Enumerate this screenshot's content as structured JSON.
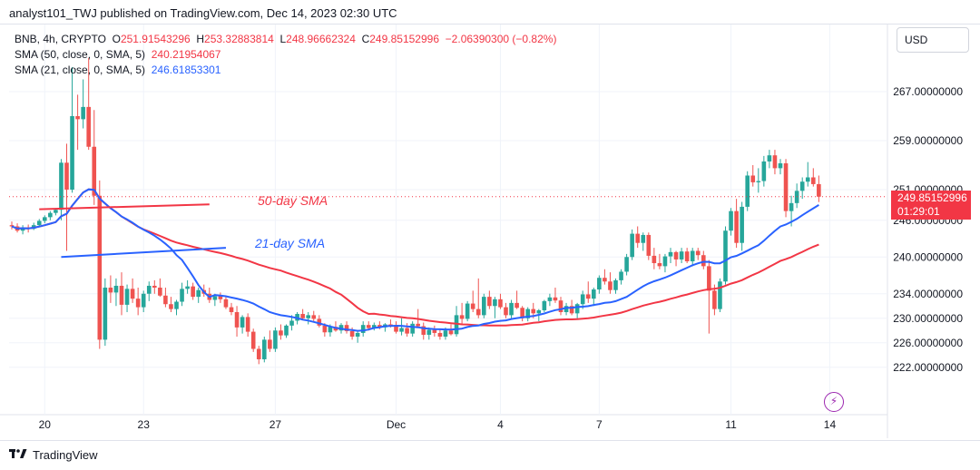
{
  "header": {
    "text": "analyst101_TWJ published on TradingView.com, Dec 14, 2023 02:30 UTC"
  },
  "footer": {
    "brand": "TradingView"
  },
  "legend": {
    "symbol": "BNB, 4h, CRYPTO",
    "ohlc": [
      {
        "label": "O",
        "value": "251.91543296"
      },
      {
        "label": "H",
        "value": "253.32883814"
      },
      {
        "label": "L",
        "value": "248.96662324"
      },
      {
        "label": "C",
        "value": "249.85152996"
      }
    ],
    "change": "−2.06390300 (−0.82%)",
    "sma50_label": "SMA (50, close, 0, SMA, 5)",
    "sma50_value": "240.21954067",
    "sma21_label": "SMA (21, close, 0, SMA, 5)",
    "sma21_value": "246.61853301"
  },
  "currency_button": "USD",
  "price_badge": {
    "price": "249.85152996",
    "countdown": "01:29:01"
  },
  "colors": {
    "up": "#26a69a",
    "down": "#ef5350",
    "sma50": "#f23645",
    "sma21": "#2962ff",
    "grid": "#f0f3fa",
    "annotation_red": "#f23645",
    "annotation_blue": "#2962ff",
    "flash_icon": "#9c27b0"
  },
  "chart_data": {
    "type": "candlestick",
    "title": "BNB, 4h, CRYPTO",
    "ylim": [
      218,
      275
    ],
    "price_ticks": [
      "267.00000000",
      "259.00000000",
      "251.00000000",
      "246.00000000",
      "240.00000000",
      "234.00000000",
      "230.00000000",
      "226.00000000",
      "222.00000000"
    ],
    "x_ticks": [
      "20",
      "23",
      "27",
      "Dec",
      "4",
      "7",
      "11",
      "14"
    ],
    "x_tick_candle_index": [
      6,
      24,
      48,
      70,
      89,
      107,
      131,
      149
    ],
    "last_price_line": 249.85,
    "annotations": [
      {
        "text": "50-day SMA",
        "color": "red"
      },
      {
        "text": "21-day SMA",
        "color": "blue"
      }
    ],
    "trendlines": [
      {
        "color": "red",
        "from": [
          5,
          247.8
        ],
        "to": [
          36,
          248.6
        ]
      },
      {
        "color": "blue",
        "from": [
          9,
          240.0
        ],
        "to": [
          39,
          241.5
        ]
      }
    ],
    "candles": [
      [
        245.2,
        245.8,
        244.5,
        245.0
      ],
      [
        245.0,
        245.5,
        244.0,
        244.3
      ],
      [
        244.3,
        245.2,
        243.7,
        244.8
      ],
      [
        244.8,
        245.3,
        244.0,
        244.6
      ],
      [
        244.6,
        245.6,
        244.4,
        245.2
      ],
      [
        245.2,
        246.2,
        245.0,
        245.9
      ],
      [
        245.9,
        246.8,
        245.5,
        246.5
      ],
      [
        246.5,
        247.5,
        246.0,
        247.2
      ],
      [
        247.2,
        248.0,
        246.8,
        247.7
      ],
      [
        247.7,
        256.0,
        246.0,
        255.4
      ],
      [
        255.4,
        258.5,
        241.0,
        251.0
      ],
      [
        251.0,
        271.0,
        250.5,
        263.0
      ],
      [
        263.0,
        266.5,
        257.5,
        262.5
      ],
      [
        262.5,
        269.0,
        261.0,
        264.5
      ],
      [
        264.5,
        272.5,
        257.5,
        258.0
      ],
      [
        258.0,
        264.0,
        248.5,
        250.0
      ],
      [
        250.0,
        252.5,
        225.0,
        226.5
      ],
      [
        226.5,
        236.5,
        225.5,
        235.0
      ],
      [
        235.0,
        237.0,
        232.5,
        234.2
      ],
      [
        234.2,
        236.5,
        232.0,
        235.3
      ],
      [
        235.3,
        237.5,
        230.5,
        232.2
      ],
      [
        232.2,
        235.5,
        231.0,
        234.8
      ],
      [
        234.8,
        236.5,
        232.5,
        233.2
      ],
      [
        233.2,
        235.0,
        230.5,
        231.8
      ],
      [
        231.8,
        234.5,
        231.0,
        234.0
      ],
      [
        234.0,
        236.0,
        232.8,
        235.3
      ],
      [
        235.3,
        236.2,
        234.0,
        235.0
      ],
      [
        235.0,
        236.5,
        233.5,
        233.7
      ],
      [
        233.7,
        235.0,
        231.8,
        232.3
      ],
      [
        232.3,
        233.5,
        231.0,
        231.5
      ],
      [
        231.5,
        233.0,
        230.5,
        232.7
      ],
      [
        232.7,
        235.8,
        232.0,
        234.8
      ],
      [
        234.8,
        236.2,
        234.0,
        235.2
      ],
      [
        235.2,
        235.8,
        233.0,
        233.5
      ],
      [
        233.5,
        235.0,
        232.5,
        234.6
      ],
      [
        234.6,
        235.5,
        233.5,
        234.0
      ],
      [
        234.0,
        235.0,
        232.5,
        233.0
      ],
      [
        233.0,
        234.0,
        232.0,
        233.6
      ],
      [
        233.6,
        234.2,
        232.5,
        233.1
      ],
      [
        233.1,
        233.6,
        231.5,
        231.8
      ],
      [
        231.8,
        232.5,
        230.5,
        231.0
      ],
      [
        231.0,
        232.0,
        227.0,
        228.5
      ],
      [
        228.5,
        230.5,
        227.5,
        230.2
      ],
      [
        230.2,
        230.8,
        227.0,
        227.8
      ],
      [
        227.8,
        228.3,
        224.5,
        225.0
      ],
      [
        225.0,
        225.5,
        222.5,
        223.3
      ],
      [
        223.3,
        227.0,
        222.8,
        226.5
      ],
      [
        226.5,
        228.0,
        224.5,
        225.0
      ],
      [
        225.0,
        228.5,
        224.5,
        228.0
      ],
      [
        228.0,
        229.0,
        226.5,
        227.2
      ],
      [
        227.2,
        229.0,
        226.8,
        228.8
      ],
      [
        228.8,
        230.5,
        228.0,
        229.6
      ],
      [
        229.6,
        231.0,
        229.0,
        230.7
      ],
      [
        230.7,
        231.5,
        229.8,
        230.0
      ],
      [
        230.0,
        231.0,
        229.0,
        230.5
      ],
      [
        230.5,
        231.2,
        229.5,
        229.9
      ],
      [
        229.9,
        230.5,
        228.5,
        228.8
      ],
      [
        228.8,
        229.2,
        227.0,
        227.7
      ],
      [
        227.7,
        229.0,
        227.0,
        228.6
      ],
      [
        228.6,
        229.5,
        227.8,
        228.0
      ],
      [
        228.0,
        229.2,
        227.5,
        228.9
      ],
      [
        228.9,
        229.5,
        227.5,
        227.9
      ],
      [
        227.9,
        228.5,
        226.5,
        227.0
      ],
      [
        227.0,
        228.0,
        226.0,
        227.6
      ],
      [
        227.6,
        229.5,
        227.0,
        228.9
      ],
      [
        228.9,
        229.5,
        228.0,
        228.4
      ],
      [
        228.4,
        229.3,
        228.0,
        228.9
      ],
      [
        228.9,
        229.5,
        228.2,
        228.5
      ],
      [
        228.5,
        229.2,
        227.8,
        229.0
      ],
      [
        229.0,
        229.8,
        228.5,
        228.9
      ],
      [
        228.9,
        229.5,
        227.5,
        227.8
      ],
      [
        227.8,
        230.0,
        227.2,
        228.4
      ],
      [
        228.4,
        229.2,
        227.0,
        227.5
      ],
      [
        227.5,
        229.5,
        227.0,
        229.1
      ],
      [
        229.1,
        231.5,
        228.5,
        228.7
      ],
      [
        228.7,
        229.3,
        226.5,
        227.3
      ],
      [
        227.3,
        228.5,
        226.5,
        228.1
      ],
      [
        228.1,
        228.8,
        227.0,
        227.6
      ],
      [
        227.6,
        228.2,
        226.5,
        227.0
      ],
      [
        227.0,
        228.5,
        226.5,
        228.0
      ],
      [
        228.0,
        229.0,
        227.2,
        227.4
      ],
      [
        227.4,
        232.0,
        227.0,
        230.5
      ],
      [
        230.5,
        232.5,
        229.0,
        229.9
      ],
      [
        229.9,
        232.8,
        229.5,
        232.4
      ],
      [
        232.4,
        234.5,
        231.0,
        231.5
      ],
      [
        231.5,
        236.5,
        230.0,
        230.5
      ],
      [
        230.5,
        234.0,
        230.0,
        233.5
      ],
      [
        233.5,
        234.5,
        231.5,
        232.0
      ],
      [
        232.0,
        233.5,
        230.0,
        233.1
      ],
      [
        233.1,
        234.0,
        231.5,
        231.8
      ],
      [
        231.8,
        232.5,
        230.0,
        230.5
      ],
      [
        230.5,
        233.0,
        230.0,
        232.5
      ],
      [
        232.5,
        234.5,
        231.5,
        231.7
      ],
      [
        231.7,
        232.0,
        229.5,
        230.0
      ],
      [
        230.0,
        231.8,
        229.5,
        231.5
      ],
      [
        231.5,
        232.5,
        230.0,
        230.8
      ],
      [
        230.8,
        231.5,
        229.5,
        231.3
      ],
      [
        231.3,
        233.0,
        231.0,
        232.8
      ],
      [
        232.8,
        234.0,
        232.0,
        233.4
      ],
      [
        233.4,
        235.0,
        232.5,
        232.9
      ],
      [
        232.9,
        233.5,
        230.5,
        231.0
      ],
      [
        231.0,
        232.5,
        230.5,
        232.0
      ],
      [
        232.0,
        233.0,
        230.5,
        230.8
      ],
      [
        230.8,
        232.5,
        230.0,
        232.3
      ],
      [
        232.3,
        234.5,
        231.5,
        233.9
      ],
      [
        233.9,
        236.0,
        232.5,
        233.2
      ],
      [
        233.2,
        235.0,
        232.0,
        234.7
      ],
      [
        234.7,
        237.0,
        234.0,
        236.6
      ],
      [
        236.6,
        238.0,
        235.5,
        236.0
      ],
      [
        236.0,
        237.5,
        234.0,
        234.6
      ],
      [
        234.6,
        236.5,
        234.0,
        236.2
      ],
      [
        236.2,
        238.0,
        235.5,
        237.6
      ],
      [
        237.6,
        240.5,
        237.0,
        240.0
      ],
      [
        240.0,
        244.5,
        239.5,
        243.8
      ],
      [
        243.8,
        245.0,
        241.5,
        242.3
      ],
      [
        242.3,
        244.0,
        241.0,
        243.6
      ],
      [
        243.6,
        244.0,
        239.5,
        240.2
      ],
      [
        240.2,
        241.5,
        238.0,
        239.0
      ],
      [
        239.0,
        240.5,
        238.0,
        238.5
      ],
      [
        238.5,
        240.5,
        237.5,
        240.1
      ],
      [
        240.1,
        241.5,
        239.0,
        240.8
      ],
      [
        240.8,
        241.0,
        238.5,
        239.6
      ],
      [
        239.6,
        241.5,
        239.0,
        240.9
      ],
      [
        240.9,
        241.5,
        239.0,
        239.3
      ],
      [
        239.3,
        241.5,
        238.5,
        241.0
      ],
      [
        241.0,
        241.5,
        239.5,
        240.3
      ],
      [
        240.3,
        241.0,
        238.0,
        238.5
      ],
      [
        238.5,
        239.5,
        227.5,
        234.5
      ],
      [
        234.5,
        235.5,
        230.5,
        231.5
      ],
      [
        231.5,
        236.5,
        231.0,
        236.0
      ],
      [
        236.0,
        245.0,
        235.5,
        244.3
      ],
      [
        244.3,
        248.0,
        243.5,
        247.5
      ],
      [
        247.5,
        249.5,
        241.5,
        242.3
      ],
      [
        242.3,
        249.0,
        241.0,
        248.2
      ],
      [
        248.2,
        254.0,
        247.5,
        253.3
      ],
      [
        253.3,
        255.0,
        251.5,
        252.2
      ],
      [
        252.2,
        254.5,
        250.5,
        252.4
      ],
      [
        252.4,
        256.5,
        251.5,
        255.6
      ],
      [
        255.6,
        257.5,
        254.5,
        256.6
      ],
      [
        256.6,
        257.5,
        253.5,
        254.5
      ],
      [
        254.5,
        256.0,
        253.5,
        255.3
      ],
      [
        255.3,
        256.0,
        246.5,
        247.5
      ],
      [
        247.5,
        250.0,
        245.0,
        248.8
      ],
      [
        248.8,
        252.0,
        248.0,
        250.8
      ],
      [
        250.8,
        253.0,
        249.5,
        252.3
      ],
      [
        252.3,
        255.5,
        251.5,
        253.0
      ],
      [
        253.0,
        254.5,
        251.5,
        251.9
      ],
      [
        251.9,
        253.3,
        248.97,
        249.85
      ]
    ]
  }
}
